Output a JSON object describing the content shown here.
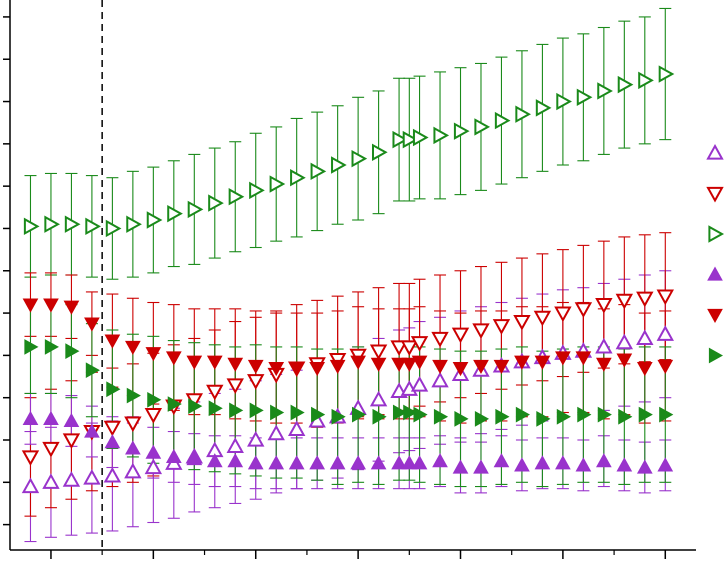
{
  "chart_data": {
    "type": "scatter",
    "title": "",
    "xlabel": "",
    "ylabel": "",
    "xlim": [
      -2.0,
      31.5
    ],
    "ylim": [
      -0.6,
      12.4
    ],
    "x_ticks": [
      0,
      5,
      10,
      15,
      20,
      25,
      30
    ],
    "x_minor_ticks": [
      2.5,
      7.5,
      12.5,
      17.5,
      22.5,
      27.5
    ],
    "y_ticks": [
      0,
      1,
      2,
      3,
      4,
      5,
      6,
      7,
      8,
      9,
      10,
      11,
      12
    ],
    "tick_labels_visible": false,
    "grid": false,
    "legend": {
      "position": "right",
      "labels_visible": false
    },
    "reference_lines": [
      {
        "orientation": "vertical",
        "x": 2.5,
        "style": "dashed",
        "color": "#000000"
      }
    ],
    "series": [
      {
        "marker": "triangle-up-open",
        "color": "#9933cc",
        "x": [
          -1,
          0,
          1,
          2,
          3,
          4,
          5,
          6,
          7,
          8,
          9,
          10,
          11,
          12,
          13,
          14,
          15,
          16,
          17,
          17.5,
          18,
          19,
          20,
          21,
          22,
          23,
          24,
          25,
          26,
          27,
          28,
          29,
          30
        ],
        "y": [
          0.9,
          1.0,
          1.05,
          1.1,
          1.15,
          1.25,
          1.35,
          1.45,
          1.6,
          1.75,
          1.85,
          2.0,
          2.15,
          2.25,
          2.45,
          2.55,
          2.75,
          2.95,
          3.15,
          3.2,
          3.3,
          3.4,
          3.55,
          3.65,
          3.75,
          3.85,
          3.95,
          4.05,
          4.1,
          4.2,
          4.3,
          4.4,
          4.5
        ],
        "err": [
          1.3,
          1.3,
          1.3,
          1.3,
          1.3,
          1.3,
          1.3,
          1.3,
          1.3,
          1.35,
          1.35,
          1.4,
          1.4,
          1.4,
          1.4,
          1.45,
          1.45,
          1.45,
          1.45,
          1.45,
          1.5,
          1.5,
          1.5,
          1.5,
          1.5,
          1.5,
          1.5,
          1.5,
          1.5,
          1.5,
          1.5,
          1.5,
          1.5
        ]
      },
      {
        "marker": "triangle-down-open",
        "color": "#cc0000",
        "x": [
          -1,
          0,
          1,
          2,
          3,
          4,
          5,
          6,
          7,
          8,
          9,
          10,
          11,
          12,
          13,
          14,
          15,
          16,
          17,
          17.5,
          18,
          19,
          20,
          21,
          22,
          23,
          24,
          25,
          26,
          27,
          28,
          29,
          30
        ],
        "y": [
          1.6,
          1.8,
          2.0,
          2.2,
          2.3,
          2.4,
          2.6,
          2.8,
          2.95,
          3.15,
          3.3,
          3.4,
          3.55,
          3.7,
          3.8,
          3.9,
          4.0,
          4.1,
          4.2,
          4.2,
          4.3,
          4.4,
          4.5,
          4.6,
          4.7,
          4.8,
          4.9,
          5.0,
          5.1,
          5.2,
          5.3,
          5.35,
          5.4
        ],
        "err": [
          1.4,
          1.4,
          1.4,
          1.4,
          1.4,
          1.4,
          1.45,
          1.45,
          1.45,
          1.45,
          1.5,
          1.5,
          1.5,
          1.5,
          1.5,
          1.5,
          1.5,
          1.5,
          1.5,
          1.5,
          1.5,
          1.5,
          1.5,
          1.5,
          1.5,
          1.5,
          1.5,
          1.5,
          1.5,
          1.5,
          1.5,
          1.5,
          1.5
        ]
      },
      {
        "marker": "triangle-right-open",
        "color": "#1a8a1a",
        "x": [
          -1,
          0,
          1,
          2,
          3,
          4,
          5,
          6,
          7,
          8,
          9,
          10,
          11,
          12,
          13,
          14,
          15,
          16,
          17,
          17.5,
          18,
          19,
          20,
          21,
          22,
          23,
          24,
          25,
          26,
          27,
          28,
          29,
          30
        ],
        "y": [
          7.05,
          7.1,
          7.1,
          7.05,
          7.0,
          7.1,
          7.2,
          7.35,
          7.45,
          7.6,
          7.75,
          7.9,
          8.05,
          8.2,
          8.35,
          8.5,
          8.65,
          8.8,
          9.1,
          9.1,
          9.15,
          9.2,
          9.3,
          9.4,
          9.55,
          9.7,
          9.85,
          10.0,
          10.1,
          10.25,
          10.4,
          10.5,
          10.65
        ],
        "err": [
          1.2,
          1.2,
          1.2,
          1.2,
          1.2,
          1.25,
          1.25,
          1.25,
          1.3,
          1.3,
          1.3,
          1.35,
          1.35,
          1.4,
          1.4,
          1.4,
          1.45,
          1.45,
          1.45,
          1.45,
          1.45,
          1.5,
          1.5,
          1.5,
          1.5,
          1.5,
          1.5,
          1.5,
          1.5,
          1.5,
          1.5,
          1.5,
          1.55
        ]
      },
      {
        "marker": "triangle-up-filled",
        "color": "#9933cc",
        "x": [
          -1,
          0,
          1,
          2,
          3,
          4,
          5,
          6,
          7,
          8,
          9,
          10,
          11,
          12,
          13,
          14,
          15,
          16,
          17,
          17.5,
          18,
          19,
          20,
          21,
          22,
          23,
          24,
          25,
          26,
          27,
          28,
          29,
          30
        ],
        "y": [
          2.5,
          2.5,
          2.45,
          2.2,
          1.95,
          1.8,
          1.7,
          1.6,
          1.55,
          1.5,
          1.5,
          1.45,
          1.45,
          1.45,
          1.45,
          1.45,
          1.45,
          1.45,
          1.45,
          1.45,
          1.45,
          1.5,
          1.35,
          1.35,
          1.5,
          1.4,
          1.45,
          1.45,
          1.4,
          1.5,
          1.4,
          1.35,
          1.4
        ],
        "err": [
          0.6,
          0.6,
          0.6,
          0.6,
          0.6,
          0.6,
          0.6,
          0.6,
          0.6,
          0.6,
          0.6,
          0.6,
          0.6,
          0.6,
          0.6,
          0.6,
          0.6,
          0.6,
          0.6,
          0.6,
          0.6,
          0.6,
          0.6,
          0.6,
          0.6,
          0.6,
          0.6,
          0.6,
          0.6,
          0.6,
          0.6,
          0.6,
          0.6
        ]
      },
      {
        "marker": "triangle-down-filled",
        "color": "#cc0000",
        "x": [
          -1,
          0,
          1,
          2,
          3,
          4,
          5,
          6,
          7,
          8,
          9,
          10,
          11,
          12,
          13,
          14,
          15,
          16,
          17,
          17.5,
          18,
          19,
          20,
          21,
          22,
          23,
          24,
          25,
          26,
          27,
          28,
          29,
          30
        ],
        "y": [
          5.2,
          5.2,
          5.15,
          4.75,
          4.35,
          4.2,
          4.05,
          3.95,
          3.85,
          3.85,
          3.8,
          3.75,
          3.7,
          3.7,
          3.7,
          3.75,
          3.85,
          3.8,
          3.8,
          3.8,
          3.85,
          3.75,
          3.7,
          3.75,
          3.75,
          3.85,
          3.85,
          3.95,
          3.95,
          3.8,
          3.9,
          3.7,
          3.75
        ],
        "err": [
          0.75,
          0.75,
          0.75,
          0.75,
          1.1,
          1.15,
          1.2,
          1.25,
          1.25,
          1.25,
          1.3,
          1.3,
          1.3,
          1.3,
          1.3,
          1.3,
          1.3,
          1.3,
          1.3,
          1.3,
          1.3,
          1.3,
          1.3,
          1.3,
          1.3,
          1.3,
          1.3,
          1.3,
          1.3,
          1.3,
          1.3,
          1.3,
          1.3
        ]
      },
      {
        "marker": "triangle-right-filled",
        "color": "#1a8a1a",
        "x": [
          -1,
          0,
          1,
          2,
          3,
          4,
          5,
          6,
          7,
          8,
          9,
          10,
          11,
          12,
          13,
          14,
          15,
          16,
          17,
          17.5,
          18,
          19,
          20,
          21,
          22,
          23,
          24,
          25,
          26,
          27,
          28,
          29,
          30
        ],
        "y": [
          4.2,
          4.2,
          4.1,
          3.65,
          3.2,
          3.05,
          2.95,
          2.85,
          2.8,
          2.75,
          2.7,
          2.7,
          2.65,
          2.65,
          2.6,
          2.55,
          2.6,
          2.55,
          2.65,
          2.65,
          2.6,
          2.55,
          2.5,
          2.5,
          2.55,
          2.6,
          2.5,
          2.55,
          2.6,
          2.6,
          2.55,
          2.6,
          2.6
        ],
        "err": [
          1.1,
          1.1,
          1.1,
          1.1,
          1.4,
          1.45,
          1.5,
          1.5,
          1.5,
          1.5,
          1.5,
          1.55,
          1.55,
          1.55,
          1.55,
          1.6,
          1.6,
          1.6,
          1.6,
          1.6,
          1.6,
          1.6,
          1.6,
          1.6,
          1.6,
          1.6,
          1.6,
          1.6,
          1.6,
          1.6,
          1.6,
          1.6,
          1.6
        ]
      }
    ]
  }
}
